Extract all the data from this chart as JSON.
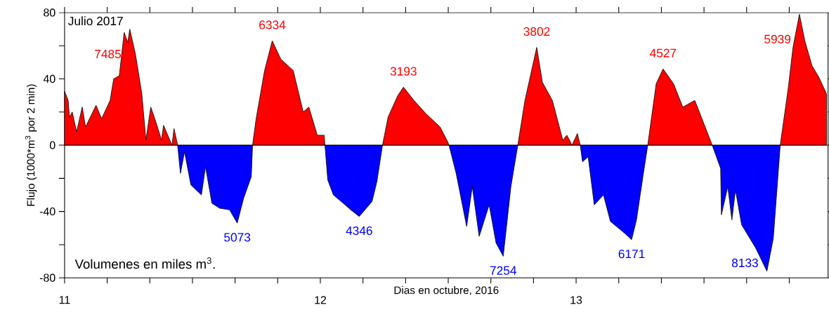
{
  "chart_data": {
    "type": "area",
    "xlabel": "Dias en octubre, 2016",
    "ylabel": "Flujo (1000*m$^{3}$ por 2 min)",
    "xlim": [
      11,
      13.985
    ],
    "xticks": [
      11,
      {
        "value": 11.1667,
        "label": null
      },
      {
        "value": 11.3333,
        "label": null
      },
      {
        "value": 11.5,
        "label": null
      },
      {
        "value": 11.6667,
        "label": null
      },
      {
        "value": 11.8333,
        "label": null
      },
      12,
      {
        "value": 12.1667,
        "label": null
      },
      {
        "value": 12.3333,
        "label": null
      },
      {
        "value": 12.5,
        "label": null
      },
      {
        "value": 12.6667,
        "label": null
      },
      {
        "value": 12.8333,
        "label": null
      },
      13,
      {
        "value": 13.1667,
        "label": null
      },
      {
        "value": 13.3333,
        "label": null
      },
      {
        "value": 13.5,
        "label": null
      },
      {
        "value": 13.6667,
        "label": null
      },
      {
        "value": 13.8333,
        "label": null
      }
    ],
    "ylim": [
      -80,
      80
    ],
    "yticks": [
      -80,
      {
        "value": -60,
        "label": null
      },
      -40,
      {
        "value": -20,
        "label": null
      },
      0,
      {
        "value": 20,
        "label": null
      },
      40,
      {
        "value": 60,
        "label": null
      },
      80
    ],
    "ref_lines": [
      {
        "axis": "y",
        "value": 0,
        "color": "#000000"
      }
    ],
    "series": [
      {
        "color": "#ff0000",
        "x": [
          11.0,
          11.014,
          11.019,
          11.03,
          11.047,
          11.069,
          11.082,
          11.123,
          11.145,
          11.178,
          11.192,
          11.214,
          11.233,
          11.247,
          11.255,
          11.277,
          11.302,
          11.318,
          11.337,
          11.357,
          11.379,
          11.387,
          11.42,
          11.428,
          11.442,
          11.5,
          11.735,
          11.749,
          11.782,
          11.812,
          11.845,
          11.894,
          11.933,
          11.955,
          11.988,
          12.015,
          12.018,
          12.1,
          12.243,
          12.265,
          12.303,
          12.325,
          12.366,
          12.413,
          12.468,
          12.498,
          12.503,
          12.6,
          12.772,
          12.8,
          12.846,
          12.868,
          12.907,
          12.948,
          12.964,
          12.984,
          13.005,
          13.016,
          13.1,
          13.28,
          13.313,
          13.34,
          13.381,
          13.417,
          13.464,
          13.527,
          13.532,
          13.6,
          13.798,
          13.829,
          13.848,
          13.873,
          13.894,
          13.922,
          13.949,
          13.979
        ],
        "values": [
          32.5,
          27,
          17,
          20,
          8,
          23,
          11,
          24,
          16,
          27,
          40,
          42,
          68,
          62,
          70,
          55,
          31,
          3,
          23,
          14,
          3,
          12,
          0,
          10,
          0,
          null,
          0,
          16,
          45,
          63,
          52,
          45,
          20,
          23,
          6,
          6,
          0,
          null,
          0,
          17,
          30,
          35,
          27,
          19,
          11,
          2,
          0,
          null,
          0,
          27,
          59,
          38,
          27,
          3,
          6,
          0,
          7,
          0,
          null,
          0,
          37,
          46,
          37,
          23,
          27,
          2,
          0,
          null,
          0,
          34,
          59,
          79,
          63,
          48,
          41,
          31
        ]
      },
      {
        "color": "#0000ff",
        "x": [
          11.442,
          11.453,
          11.469,
          11.494,
          11.535,
          11.551,
          11.576,
          11.606,
          11.645,
          11.675,
          11.7,
          11.73,
          11.735,
          11.9,
          12.018,
          12.029,
          12.051,
          12.097,
          12.119,
          12.152,
          12.202,
          12.221,
          12.243,
          12.4,
          12.503,
          12.531,
          12.572,
          12.594,
          12.621,
          12.66,
          12.687,
          12.715,
          12.745,
          12.772,
          12.9,
          13.016,
          13.025,
          13.047,
          13.071,
          13.107,
          13.134,
          13.189,
          13.217,
          13.236,
          13.263,
          13.28,
          13.4,
          13.532,
          13.565,
          13.568,
          13.593,
          13.609,
          13.623,
          13.647,
          13.702,
          13.746,
          13.771,
          13.798
        ],
        "values": [
          0,
          -17,
          -4,
          -24,
          -30,
          -13,
          -35,
          -38,
          -39,
          -47,
          -32,
          -19,
          0,
          null,
          0,
          -21,
          -30,
          -36,
          -39,
          -43,
          -34,
          -22,
          0,
          null,
          0,
          -17,
          -49,
          -25,
          -55,
          -36,
          -59,
          -67,
          -25,
          0,
          null,
          0,
          -10,
          -7,
          -36,
          -30,
          -46,
          -53,
          -57,
          -45,
          -17,
          0,
          null,
          0,
          -14,
          -42,
          -25,
          -45,
          -27,
          -48,
          -62,
          -76,
          -56,
          0
        ]
      }
    ],
    "annotations": [
      "Julio 2017",
      "Volumenes en miles m$^{3}$.",
      "7485",
      "6334",
      "3193",
      "3802",
      "4527",
      "5939",
      "5073",
      "4346",
      "7254",
      "6171",
      "8133"
    ]
  }
}
